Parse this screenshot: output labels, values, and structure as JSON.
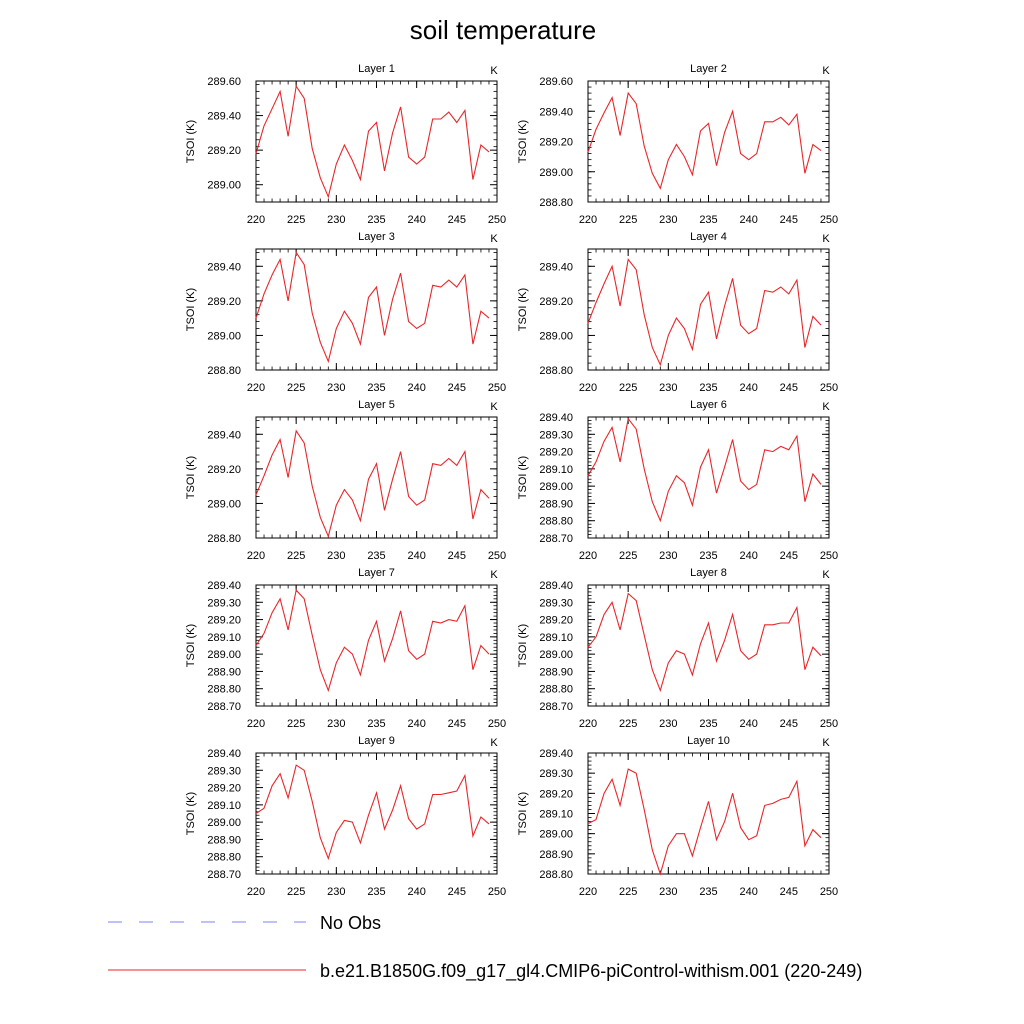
{
  "figure": {
    "title": "soil temperature",
    "legend": [
      {
        "label": "No Obs",
        "color": "#8080ff",
        "dash": true
      },
      {
        "label": "b.e21.B1850G.f09_g17_gl4.CMIP6-piControl-withism.001 (220-249)",
        "color": "#e8262a",
        "dash": false
      }
    ]
  },
  "chart_data": [
    {
      "type": "line",
      "title": "Layer 1",
      "unit": "K",
      "ylabel": "TSOI  (K)",
      "xlim": [
        220,
        250
      ],
      "ylim": [
        288.9,
        289.6
      ],
      "yticks": [
        289.0,
        289.2,
        289.4,
        289.6
      ],
      "ytick_labels": [
        "289.00",
        "289.20",
        "289.40",
        "289.60"
      ],
      "xticks": [
        220,
        225,
        230,
        235,
        240,
        245,
        250
      ],
      "xtick_labels": [
        "220",
        "225",
        "230",
        "235",
        "240",
        "245",
        "250"
      ],
      "series": [
        {
          "color": "#e8262a",
          "x": [
            220,
            221,
            222,
            223,
            224,
            225,
            226,
            227,
            228,
            229,
            230,
            231,
            232,
            233,
            234,
            235,
            236,
            237,
            238,
            239,
            240,
            241,
            242,
            243,
            244,
            245,
            246,
            247,
            248,
            249
          ],
          "y": [
            289.18,
            289.34,
            289.44,
            289.54,
            289.28,
            289.57,
            289.5,
            289.21,
            289.04,
            288.93,
            289.12,
            289.23,
            289.14,
            289.03,
            289.31,
            289.36,
            289.08,
            289.3,
            289.45,
            289.16,
            289.12,
            289.16,
            289.38,
            289.38,
            289.42,
            289.36,
            289.43,
            289.03,
            289.23,
            289.19
          ]
        }
      ]
    },
    {
      "type": "line",
      "title": "Layer 2",
      "unit": "K",
      "ylabel": "TSOI  (K)",
      "xlim": [
        220,
        250
      ],
      "ylim": [
        288.8,
        289.6
      ],
      "yticks": [
        288.8,
        289.0,
        289.2,
        289.4,
        289.6
      ],
      "ytick_labels": [
        "288.80",
        "289.00",
        "289.20",
        "289.40",
        "289.60"
      ],
      "xticks": [
        220,
        225,
        230,
        235,
        240,
        245,
        250
      ],
      "xtick_labels": [
        "220",
        "225",
        "230",
        "235",
        "240",
        "245",
        "250"
      ],
      "series": [
        {
          "color": "#e8262a",
          "x": [
            220,
            221,
            222,
            223,
            224,
            225,
            226,
            227,
            228,
            229,
            230,
            231,
            232,
            233,
            234,
            235,
            236,
            237,
            238,
            239,
            240,
            241,
            242,
            243,
            244,
            245,
            246,
            247,
            248,
            249
          ],
          "y": [
            289.13,
            289.28,
            289.39,
            289.49,
            289.24,
            289.52,
            289.45,
            289.17,
            288.99,
            288.89,
            289.08,
            289.18,
            289.1,
            288.98,
            289.27,
            289.32,
            289.04,
            289.26,
            289.4,
            289.12,
            289.08,
            289.12,
            289.33,
            289.33,
            289.36,
            289.31,
            289.38,
            288.99,
            289.18,
            289.14
          ]
        }
      ]
    },
    {
      "type": "line",
      "title": "Layer 3",
      "unit": "K",
      "ylabel": "TSOI  (K)",
      "xlim": [
        220,
        250
      ],
      "ylim": [
        288.8,
        289.5
      ],
      "yticks": [
        288.8,
        289.0,
        289.2,
        289.4
      ],
      "ytick_labels": [
        "288.80",
        "289.00",
        "289.20",
        "289.40"
      ],
      "xticks": [
        220,
        225,
        230,
        235,
        240,
        245,
        250
      ],
      "xtick_labels": [
        "220",
        "225",
        "230",
        "235",
        "240",
        "245",
        "250"
      ],
      "series": [
        {
          "color": "#e8262a",
          "x": [
            220,
            221,
            222,
            223,
            224,
            225,
            226,
            227,
            228,
            229,
            230,
            231,
            232,
            233,
            234,
            235,
            236,
            237,
            238,
            239,
            240,
            241,
            242,
            243,
            244,
            245,
            246,
            247,
            248,
            249
          ],
          "y": [
            289.1,
            289.24,
            289.35,
            289.44,
            289.2,
            289.48,
            289.41,
            289.13,
            288.96,
            288.85,
            289.04,
            289.14,
            289.07,
            288.95,
            289.22,
            289.28,
            289.0,
            289.21,
            289.36,
            289.08,
            289.04,
            289.07,
            289.29,
            289.28,
            289.32,
            289.28,
            289.35,
            288.95,
            289.14,
            289.1
          ]
        }
      ]
    },
    {
      "type": "line",
      "title": "Layer 4",
      "unit": "K",
      "ylabel": "TSOI  (K)",
      "xlim": [
        220,
        250
      ],
      "ylim": [
        288.8,
        289.5
      ],
      "yticks": [
        288.8,
        289.0,
        289.2,
        289.4
      ],
      "ytick_labels": [
        "288.80",
        "289.00",
        "289.20",
        "289.40"
      ],
      "xticks": [
        220,
        225,
        230,
        235,
        240,
        245,
        250
      ],
      "xtick_labels": [
        "220",
        "225",
        "230",
        "235",
        "240",
        "245",
        "250"
      ],
      "series": [
        {
          "color": "#e8262a",
          "x": [
            220,
            221,
            222,
            223,
            224,
            225,
            226,
            227,
            228,
            229,
            230,
            231,
            232,
            233,
            234,
            235,
            236,
            237,
            238,
            239,
            240,
            241,
            242,
            243,
            244,
            245,
            246,
            247,
            248,
            249
          ],
          "y": [
            289.07,
            289.19,
            289.3,
            289.4,
            289.17,
            289.44,
            289.38,
            289.12,
            288.93,
            288.83,
            289.0,
            289.1,
            289.04,
            288.92,
            289.18,
            289.25,
            288.98,
            289.17,
            289.33,
            289.06,
            289.01,
            289.04,
            289.26,
            289.25,
            289.28,
            289.24,
            289.32,
            288.93,
            289.11,
            289.06
          ]
        }
      ]
    },
    {
      "type": "line",
      "title": "Layer 5",
      "unit": "K",
      "ylabel": "TSOI  (K)",
      "xlim": [
        220,
        250
      ],
      "ylim": [
        288.8,
        289.5
      ],
      "yticks": [
        288.8,
        289.0,
        289.2,
        289.4
      ],
      "ytick_labels": [
        "288.80",
        "289.00",
        "289.20",
        "289.40"
      ],
      "xticks": [
        220,
        225,
        230,
        235,
        240,
        245,
        250
      ],
      "xtick_labels": [
        "220",
        "225",
        "230",
        "235",
        "240",
        "245",
        "250"
      ],
      "series": [
        {
          "color": "#e8262a",
          "x": [
            220,
            221,
            222,
            223,
            224,
            225,
            226,
            227,
            228,
            229,
            230,
            231,
            232,
            233,
            234,
            235,
            236,
            237,
            238,
            239,
            240,
            241,
            242,
            243,
            244,
            245,
            246,
            247,
            248,
            249
          ],
          "y": [
            289.05,
            289.16,
            289.28,
            289.37,
            289.15,
            289.42,
            289.35,
            289.1,
            288.92,
            288.81,
            288.99,
            289.08,
            289.02,
            288.9,
            289.14,
            289.23,
            288.96,
            289.14,
            289.3,
            289.04,
            288.99,
            289.02,
            289.23,
            289.22,
            289.26,
            289.22,
            289.3,
            288.91,
            289.08,
            289.03
          ]
        }
      ]
    },
    {
      "type": "line",
      "title": "Layer 6",
      "unit": "K",
      "ylabel": "TSOI  (K)",
      "xlim": [
        220,
        250
      ],
      "ylim": [
        288.7,
        289.4
      ],
      "yticks": [
        288.7,
        288.8,
        288.9,
        289.0,
        289.1,
        289.2,
        289.3,
        289.4
      ],
      "ytick_labels": [
        "288.70",
        "288.80",
        "288.90",
        "289.00",
        "289.10",
        "289.20",
        "289.30",
        "289.40"
      ],
      "xticks": [
        220,
        225,
        230,
        235,
        240,
        245,
        250
      ],
      "xtick_labels": [
        "220",
        "225",
        "230",
        "235",
        "240",
        "245",
        "250"
      ],
      "series": [
        {
          "color": "#e8262a",
          "x": [
            220,
            221,
            222,
            223,
            224,
            225,
            226,
            227,
            228,
            229,
            230,
            231,
            232,
            233,
            234,
            235,
            236,
            237,
            238,
            239,
            240,
            241,
            242,
            243,
            244,
            245,
            246,
            247,
            248,
            249
          ],
          "y": [
            289.06,
            289.14,
            289.26,
            289.34,
            289.14,
            289.39,
            289.33,
            289.1,
            288.91,
            288.8,
            288.97,
            289.06,
            289.02,
            288.89,
            289.11,
            289.21,
            288.96,
            289.11,
            289.27,
            289.03,
            288.98,
            289.01,
            289.21,
            289.2,
            289.23,
            289.21,
            289.29,
            288.91,
            289.07,
            289.01
          ]
        }
      ]
    },
    {
      "type": "line",
      "title": "Layer 7",
      "unit": "K",
      "ylabel": "TSOI  (K)",
      "xlim": [
        220,
        250
      ],
      "ylim": [
        288.7,
        289.4
      ],
      "yticks": [
        288.7,
        288.8,
        288.9,
        289.0,
        289.1,
        289.2,
        289.3,
        289.4
      ],
      "ytick_labels": [
        "288.70",
        "288.80",
        "288.90",
        "289.00",
        "289.10",
        "289.20",
        "289.30",
        "289.40"
      ],
      "xticks": [
        220,
        225,
        230,
        235,
        240,
        245,
        250
      ],
      "xtick_labels": [
        "220",
        "225",
        "230",
        "235",
        "240",
        "245",
        "250"
      ],
      "series": [
        {
          "color": "#e8262a",
          "x": [
            220,
            221,
            222,
            223,
            224,
            225,
            226,
            227,
            228,
            229,
            230,
            231,
            232,
            233,
            234,
            235,
            236,
            237,
            238,
            239,
            240,
            241,
            242,
            243,
            244,
            245,
            246,
            247,
            248,
            249
          ],
          "y": [
            289.05,
            289.12,
            289.24,
            289.32,
            289.14,
            289.37,
            289.32,
            289.11,
            288.91,
            288.79,
            288.95,
            289.04,
            289.0,
            288.88,
            289.08,
            289.19,
            288.96,
            289.09,
            289.25,
            289.02,
            288.97,
            289.0,
            289.19,
            289.18,
            289.2,
            289.19,
            289.28,
            288.91,
            289.05,
            289.0
          ]
        }
      ]
    },
    {
      "type": "line",
      "title": "Layer 8",
      "unit": "K",
      "ylabel": "TSOI  (K)",
      "xlim": [
        220,
        250
      ],
      "ylim": [
        288.7,
        289.4
      ],
      "yticks": [
        288.7,
        288.8,
        288.9,
        289.0,
        289.1,
        289.2,
        289.3,
        289.4
      ],
      "ytick_labels": [
        "288.70",
        "288.80",
        "288.90",
        "289.00",
        "289.10",
        "289.20",
        "289.30",
        "289.40"
      ],
      "xticks": [
        220,
        225,
        230,
        235,
        240,
        245,
        250
      ],
      "xtick_labels": [
        "220",
        "225",
        "230",
        "235",
        "240",
        "245",
        "250"
      ],
      "series": [
        {
          "color": "#e8262a",
          "x": [
            220,
            221,
            222,
            223,
            224,
            225,
            226,
            227,
            228,
            229,
            230,
            231,
            232,
            233,
            234,
            235,
            236,
            237,
            238,
            239,
            240,
            241,
            242,
            243,
            244,
            245,
            246,
            247,
            248,
            249
          ],
          "y": [
            289.04,
            289.1,
            289.23,
            289.3,
            289.14,
            289.35,
            289.31,
            289.11,
            288.91,
            288.79,
            288.95,
            289.02,
            289.0,
            288.88,
            289.06,
            289.18,
            288.96,
            289.08,
            289.23,
            289.02,
            288.97,
            289.0,
            289.17,
            289.17,
            289.18,
            289.18,
            289.27,
            288.91,
            289.04,
            288.99
          ]
        }
      ]
    },
    {
      "type": "line",
      "title": "Layer 9",
      "unit": "K",
      "ylabel": "TSOI  (K)",
      "xlim": [
        220,
        250
      ],
      "ylim": [
        288.7,
        289.4
      ],
      "yticks": [
        288.7,
        288.8,
        288.9,
        289.0,
        289.1,
        289.2,
        289.3,
        289.4
      ],
      "ytick_labels": [
        "288.70",
        "288.80",
        "288.90",
        "289.00",
        "289.10",
        "289.20",
        "289.30",
        "289.40"
      ],
      "xticks": [
        220,
        225,
        230,
        235,
        240,
        245,
        250
      ],
      "xtick_labels": [
        "220",
        "225",
        "230",
        "235",
        "240",
        "245",
        "250"
      ],
      "series": [
        {
          "color": "#e8262a",
          "x": [
            220,
            221,
            222,
            223,
            224,
            225,
            226,
            227,
            228,
            229,
            230,
            231,
            232,
            233,
            234,
            235,
            236,
            237,
            238,
            239,
            240,
            241,
            242,
            243,
            244,
            245,
            246,
            247,
            248,
            249
          ],
          "y": [
            289.05,
            289.08,
            289.21,
            289.28,
            289.14,
            289.33,
            289.3,
            289.12,
            288.91,
            288.79,
            288.94,
            289.01,
            289.0,
            288.88,
            289.04,
            289.17,
            288.96,
            289.07,
            289.21,
            289.02,
            288.96,
            288.99,
            289.16,
            289.16,
            289.17,
            289.18,
            289.27,
            288.92,
            289.03,
            288.99
          ]
        }
      ]
    },
    {
      "type": "line",
      "title": "Layer 10",
      "unit": "K",
      "ylabel": "TSOI  (K)",
      "xlim": [
        220,
        250
      ],
      "ylim": [
        288.8,
        289.4
      ],
      "yticks": [
        288.8,
        288.9,
        289.0,
        289.1,
        289.2,
        289.3,
        289.4
      ],
      "ytick_labels": [
        "288.80",
        "288.90",
        "289.00",
        "289.10",
        "289.20",
        "289.30",
        "289.40"
      ],
      "xticks": [
        220,
        225,
        230,
        235,
        240,
        245,
        250
      ],
      "xtick_labels": [
        "220",
        "225",
        "230",
        "235",
        "240",
        "245",
        "250"
      ],
      "series": [
        {
          "color": "#e8262a",
          "x": [
            220,
            221,
            222,
            223,
            224,
            225,
            226,
            227,
            228,
            229,
            230,
            231,
            232,
            233,
            234,
            235,
            236,
            237,
            238,
            239,
            240,
            241,
            242,
            243,
            244,
            245,
            246,
            247,
            248,
            249
          ],
          "y": [
            289.05,
            289.07,
            289.2,
            289.27,
            289.14,
            289.32,
            289.3,
            289.12,
            288.92,
            288.8,
            288.94,
            289.0,
            289.0,
            288.89,
            289.03,
            289.16,
            288.97,
            289.06,
            289.2,
            289.03,
            288.97,
            288.99,
            289.14,
            289.15,
            289.17,
            289.18,
            289.26,
            288.94,
            289.02,
            288.98
          ]
        }
      ]
    }
  ]
}
